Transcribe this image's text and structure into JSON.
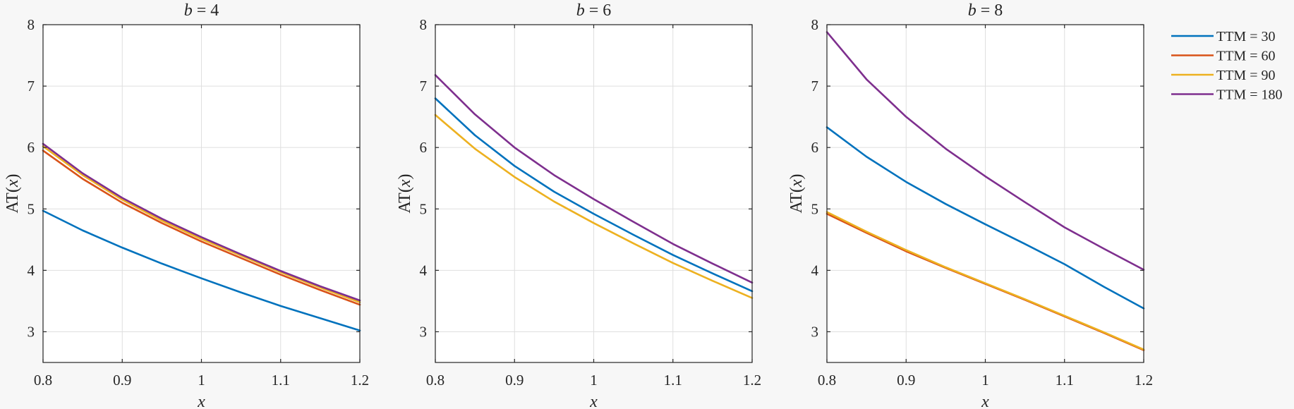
{
  "chart_data": [
    {
      "type": "line",
      "title": "b = 4",
      "title_var": "b",
      "title_rest": " = 4",
      "xlabel": "x",
      "ylabel_text": "AT(",
      "ylabel_var": "x",
      "ylabel_close": ")",
      "xlim": [
        0.8,
        1.2
      ],
      "ylim": [
        2.5,
        8
      ],
      "xticks": [
        0.8,
        0.9,
        1,
        1.1,
        1.2
      ],
      "xtick_labels": [
        "0.8",
        "0.9",
        "1",
        "1.1",
        "1.2"
      ],
      "yticks": [
        3,
        4,
        5,
        6,
        7,
        8
      ],
      "ytick_labels": [
        "3",
        "4",
        "5",
        "6",
        "7",
        "8"
      ],
      "grid": true,
      "x": [
        0.8,
        0.85,
        0.9,
        0.95,
        1.0,
        1.05,
        1.1,
        1.15,
        1.2
      ],
      "series": [
        {
          "name": "TTM = 30",
          "color": "#0072BD",
          "values": [
            4.97,
            4.65,
            4.37,
            4.11,
            3.87,
            3.64,
            3.42,
            3.22,
            3.02
          ]
        },
        {
          "name": "TTM = 60",
          "color": "#D95319",
          "values": [
            5.95,
            5.49,
            5.1,
            4.77,
            4.47,
            4.2,
            3.93,
            3.68,
            3.44
          ]
        },
        {
          "name": "TTM = 90",
          "color": "#EDB120",
          "values": [
            6.02,
            5.55,
            5.15,
            4.81,
            4.51,
            4.24,
            3.97,
            3.72,
            3.48
          ]
        },
        {
          "name": "TTM = 180",
          "color": "#7E2F8E",
          "values": [
            6.06,
            5.58,
            5.18,
            4.84,
            4.54,
            4.26,
            3.99,
            3.74,
            3.51
          ]
        }
      ]
    },
    {
      "type": "line",
      "title": "b = 6",
      "title_var": "b",
      "title_rest": " = 6",
      "xlabel": "x",
      "ylabel_text": "AT(",
      "ylabel_var": "x",
      "ylabel_close": ")",
      "xlim": [
        0.8,
        1.2
      ],
      "ylim": [
        2.5,
        8
      ],
      "xticks": [
        0.8,
        0.9,
        1,
        1.1,
        1.2
      ],
      "xtick_labels": [
        "0.8",
        "0.9",
        "1",
        "1.1",
        "1.2"
      ],
      "yticks": [
        3,
        4,
        5,
        6,
        7,
        8
      ],
      "ytick_labels": [
        "3",
        "4",
        "5",
        "6",
        "7",
        "8"
      ],
      "grid": true,
      "x": [
        0.8,
        0.85,
        0.9,
        0.95,
        1.0,
        1.05,
        1.1,
        1.15,
        1.2
      ],
      "series": [
        {
          "name": "TTM = 30",
          "color": "#0072BD",
          "values": [
            6.8,
            6.2,
            5.7,
            5.28,
            4.92,
            4.58,
            4.25,
            3.95,
            3.66
          ]
        },
        {
          "name": "TTM = 90",
          "color": "#EDB120",
          "values": [
            6.53,
            5.98,
            5.52,
            5.12,
            4.77,
            4.44,
            4.12,
            3.83,
            3.55
          ]
        },
        {
          "name": "TTM = 180",
          "color": "#7E2F8E",
          "values": [
            7.18,
            6.54,
            6.0,
            5.55,
            5.16,
            4.79,
            4.43,
            4.11,
            3.8
          ]
        }
      ]
    },
    {
      "type": "line",
      "title": "b = 8",
      "title_var": "b",
      "title_rest": " = 8",
      "xlabel": "x",
      "ylabel_text": "AT(",
      "ylabel_var": "x",
      "ylabel_close": ")",
      "xlim": [
        0.8,
        1.2
      ],
      "ylim": [
        2.5,
        8
      ],
      "xticks": [
        0.8,
        0.9,
        1,
        1.1,
        1.2
      ],
      "xtick_labels": [
        "0.8",
        "0.9",
        "1",
        "1.1",
        "1.2"
      ],
      "yticks": [
        3,
        4,
        5,
        6,
        7,
        8
      ],
      "ytick_labels": [
        "3",
        "4",
        "5",
        "6",
        "7",
        "8"
      ],
      "grid": true,
      "x": [
        0.8,
        0.85,
        0.9,
        0.95,
        1.0,
        1.05,
        1.1,
        1.15,
        1.2
      ],
      "series": [
        {
          "name": "TTM = 30",
          "color": "#0072BD",
          "values": [
            6.33,
            5.85,
            5.44,
            5.08,
            4.75,
            4.43,
            4.1,
            3.73,
            3.38
          ]
        },
        {
          "name": "TTM = 60",
          "color": "#D95319",
          "values": [
            4.92,
            4.61,
            4.31,
            4.04,
            3.78,
            3.52,
            3.25,
            2.98,
            2.7
          ]
        },
        {
          "name": "TTM = 90",
          "color": "#EDB120",
          "values": [
            4.95,
            4.63,
            4.33,
            4.05,
            3.79,
            3.53,
            3.26,
            2.99,
            2.71
          ]
        },
        {
          "name": "TTM = 180",
          "color": "#7E2F8E",
          "values": [
            7.88,
            7.11,
            6.5,
            5.98,
            5.53,
            5.11,
            4.7,
            4.35,
            4.01
          ]
        }
      ]
    }
  ],
  "legend": {
    "placement": "right",
    "entries": [
      {
        "label": "TTM = 30",
        "color": "#0072BD"
      },
      {
        "label": "TTM = 60",
        "color": "#D95319"
      },
      {
        "label": "TTM = 90",
        "color": "#EDB120"
      },
      {
        "label": "TTM = 180",
        "color": "#7E2F8E"
      }
    ]
  }
}
